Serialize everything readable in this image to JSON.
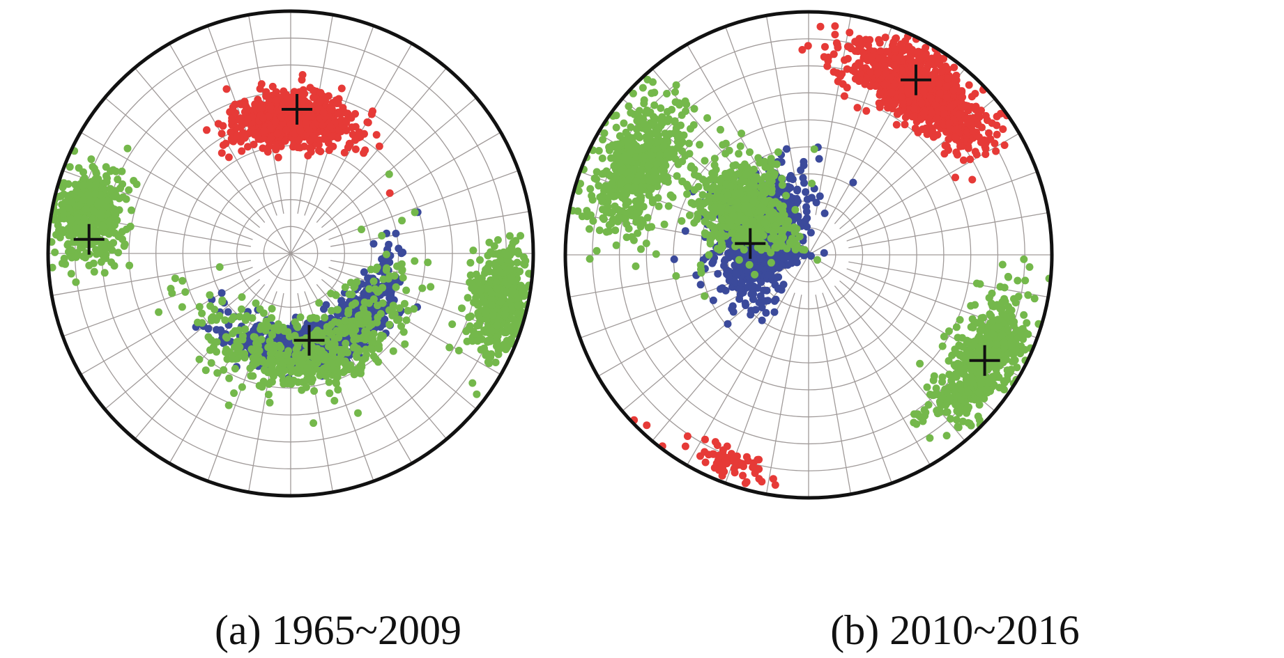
{
  "chart_data": [
    {
      "type": "scatter",
      "panel_label": "(a) 1965~2009",
      "projection": "lower-hemisphere stereonet",
      "grid": true,
      "r_max_deg": 90,
      "series": [
        {
          "color": "#e63a37",
          "cluster": {
            "theta": 1.0,
            "rho": 51.0,
            "spread_theta": 25,
            "spread_rho": 10
          },
          "count": 700,
          "center": {
            "theta": 2.5,
            "rho": 53.6
          }
        },
        {
          "color": "#3b4a9b",
          "cluster": {
            "theta": 157.0,
            "rho": 36.0,
            "spread_theta": 55,
            "spread_rho": 8
          },
          "count": 900,
          "center": {
            "theta": 168.0,
            "rho": 33.0
          }
        },
        {
          "color": "#74b84b",
          "bands": [
            {
              "theta": 281.0,
              "rho": 76.0,
              "spread_theta": 12,
              "spread_rho": 12
            },
            {
              "theta": 103.0,
              "rho": 80.0,
              "spread_theta": 14,
              "spread_rho": 10
            },
            {
              "theta": 165.0,
              "rho": 40.0,
              "spread_theta": 70,
              "spread_rho": 14
            }
          ],
          "count": 1500,
          "center": {
            "theta": 274.0,
            "rho": 75.0
          }
        }
      ]
    },
    {
      "type": "scatter",
      "panel_label": "(b) 2010~2016",
      "projection": "lower-hemisphere stereonet",
      "grid": true,
      "r_max_deg": 90,
      "series": [
        {
          "color": "#e63a37",
          "cluster": {
            "theta": 34.0,
            "rho": 75.0,
            "spread_theta": 22,
            "spread_rho": 12
          },
          "outliers": {
            "theta": 200,
            "rho": 82,
            "spread_theta": 10,
            "spread_rho": 5
          },
          "count": 900,
          "center": {
            "theta": 31.5,
            "rho": 76.0
          }
        },
        {
          "color": "#3b4a9b",
          "cluster": {
            "theta": 290.0,
            "rho": 22.0,
            "spread_theta": 60,
            "spread_rho": 16
          },
          "count": 900,
          "center": {
            "theta": 281.0,
            "rho": 22.0
          }
        },
        {
          "color": "#74b84b",
          "bands": [
            {
              "theta": 121.0,
              "rho": 76.0,
              "spread_theta": 20,
              "spread_rho": 12
            },
            {
              "theta": 297.0,
              "rho": 72.0,
              "spread_theta": 20,
              "spread_rho": 14
            },
            {
              "theta": 305.0,
              "rho": 30.0,
              "spread_theta": 30,
              "spread_rho": 20
            }
          ],
          "count": 1600,
          "center": {
            "theta": 121.0,
            "rho": 76.0
          }
        }
      ]
    }
  ]
}
